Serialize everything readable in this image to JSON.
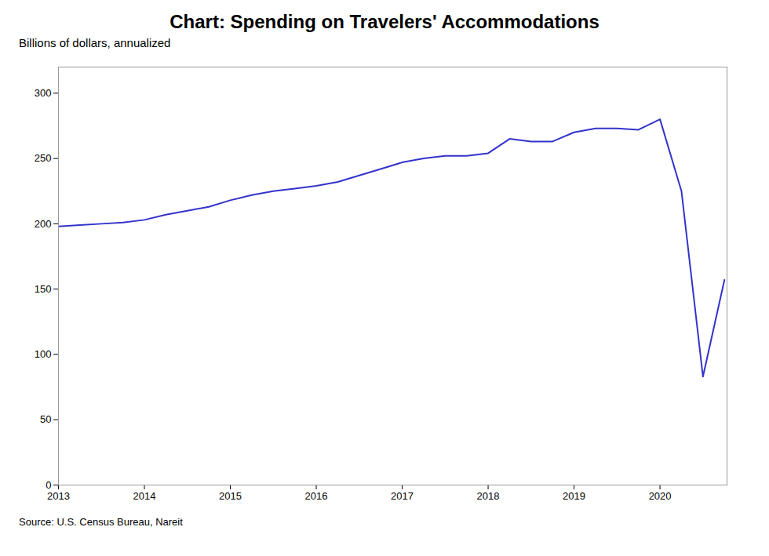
{
  "chart_data": {
    "type": "line",
    "title": "Chart: Spending on Travelers' Accommodations",
    "subtitle": "Billions of dollars, annualized",
    "source": "Source: U.S. Census Bureau, Nareit",
    "color": "#3333cc",
    "grid": false,
    "xlim": [
      2013.0,
      2020.78
    ],
    "ylim": [
      0,
      320
    ],
    "xticks": [
      2013,
      2014,
      2015,
      2016,
      2017,
      2018,
      2019,
      2020
    ],
    "yticks": [
      0,
      50,
      100,
      150,
      200,
      250,
      300
    ],
    "x": [
      2013.0,
      2013.25,
      2013.5,
      2013.75,
      2014.0,
      2014.25,
      2014.5,
      2014.75,
      2015.0,
      2015.25,
      2015.5,
      2015.75,
      2016.0,
      2016.25,
      2016.5,
      2016.75,
      2017.0,
      2017.25,
      2017.5,
      2017.75,
      2018.0,
      2018.25,
      2018.5,
      2018.75,
      2019.0,
      2019.25,
      2019.5,
      2019.75,
      2020.0,
      2020.25,
      2020.5,
      2020.75
    ],
    "values": [
      198,
      199,
      200,
      201,
      203,
      207,
      210,
      213,
      218,
      222,
      225,
      227,
      229,
      232,
      237,
      242,
      247,
      250,
      252,
      252,
      254,
      265,
      263,
      263,
      270,
      273,
      273,
      272,
      280,
      225,
      83,
      157
    ]
  }
}
